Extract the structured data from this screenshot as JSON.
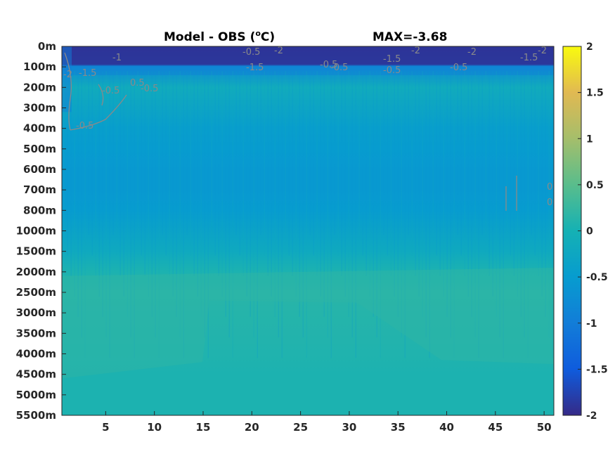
{
  "chart_data": {
    "type": "heatmap",
    "title": "Model - OBS (",
    "title_unit_sup": "o",
    "title_unit": "C)",
    "max_label": "MAX=-3.68",
    "x_ticks": [
      5,
      10,
      15,
      20,
      25,
      30,
      35,
      40,
      45,
      50
    ],
    "xlim": [
      0.5,
      51
    ],
    "y_ticks": [
      "0m",
      "100m",
      "200m",
      "300m",
      "400m",
      "500m",
      "600m",
      "700m",
      "800m",
      "1000m",
      "1500m",
      "2000m",
      "2500m",
      "3000m",
      "3500m",
      "4000m",
      "4500m",
      "5000m",
      "5500m"
    ],
    "colorbar": {
      "min": -2,
      "max": 2,
      "ticks": [
        "2",
        "1.5",
        "1",
        "0.5",
        "0",
        "-0.5",
        "-1",
        "-1.5",
        "-2"
      ],
      "colormap": "parula"
    },
    "depth_profile": [
      {
        "depth": "0m",
        "value": -1.9
      },
      {
        "depth": "100m",
        "value": -0.8
      },
      {
        "depth": "200m",
        "value": -0.15
      },
      {
        "depth": "300m",
        "value": -0.3
      },
      {
        "depth": "400m",
        "value": -0.45
      },
      {
        "depth": "500m",
        "value": -0.5
      },
      {
        "depth": "600m",
        "value": -0.55
      },
      {
        "depth": "700m",
        "value": -0.55
      },
      {
        "depth": "800m",
        "value": -0.5
      },
      {
        "depth": "1000m",
        "value": -0.35
      },
      {
        "depth": "1500m",
        "value": -0.2
      },
      {
        "depth": "2000m",
        "value": 0.05
      },
      {
        "depth": "2500m",
        "value": 0.15
      },
      {
        "depth": "3000m",
        "value": 0.12
      },
      {
        "depth": "3500m",
        "value": 0.1
      },
      {
        "depth": "4000m",
        "value": 0.08
      },
      {
        "depth": "4500m",
        "value": 0.05
      },
      {
        "depth": "5000m",
        "value": 0.05
      },
      {
        "depth": "5500m",
        "value": 0.05
      }
    ],
    "contour_labels": [
      "-2",
      "-1.5",
      "-1",
      "-0.5",
      "-0.5",
      "-0.5",
      "-1.5",
      "-2",
      "-0.5",
      "-1.5",
      "-2",
      "-0.5",
      "0.5",
      "-0.5",
      "-0.5",
      "-0.5",
      "-2",
      "-1.5",
      "-2",
      "0",
      "0"
    ]
  }
}
